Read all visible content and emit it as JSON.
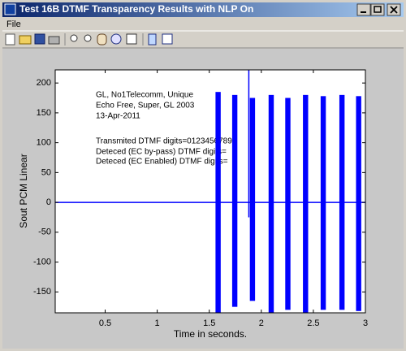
{
  "window": {
    "title": "Test 16B DTMF Transparency Results with NLP On",
    "menu": [
      "File"
    ]
  },
  "chart_data": {
    "type": "bursts",
    "x_label": "Time in seconds.",
    "y_label": "Sout PCM Linear",
    "xlim": [
      0.02,
      3
    ],
    "ylim": [
      -185,
      222
    ],
    "xticks": [
      0.5,
      1,
      1.5,
      2,
      2.5,
      3
    ],
    "yticks": [
      -150,
      -100,
      -50,
      0,
      50,
      100,
      150,
      200
    ],
    "color": "#0000ff",
    "annotations": [
      "GL, No1Telecomm, Unique",
      "Echo Free, Super, GL 2003",
      "13-Apr-2011",
      "Transmited DTMF digits=0123456789",
      "Deteced (EC by-pass) DTMF digits=",
      "Deteced (EC Enabled) DTMF digits="
    ],
    "floor": {
      "x": [
        0.02,
        3
      ],
      "values": [
        0,
        0
      ]
    },
    "spike": {
      "x": 1.88,
      "max": 222,
      "min": -25
    },
    "bursts": [
      {
        "start": 1.56,
        "end": 1.61,
        "max": 185,
        "min": -185
      },
      {
        "start": 1.72,
        "end": 1.77,
        "max": 180,
        "min": -175
      },
      {
        "start": 1.89,
        "end": 1.94,
        "max": 175,
        "min": -165
      },
      {
        "start": 2.07,
        "end": 2.12,
        "max": 180,
        "min": -185
      },
      {
        "start": 2.23,
        "end": 2.28,
        "max": 175,
        "min": -180
      },
      {
        "start": 2.4,
        "end": 2.45,
        "max": 180,
        "min": -185
      },
      {
        "start": 2.57,
        "end": 2.62,
        "max": 178,
        "min": -180
      },
      {
        "start": 2.75,
        "end": 2.8,
        "max": 180,
        "min": -180
      },
      {
        "start": 2.91,
        "end": 2.96,
        "max": 178,
        "min": -182
      }
    ]
  }
}
